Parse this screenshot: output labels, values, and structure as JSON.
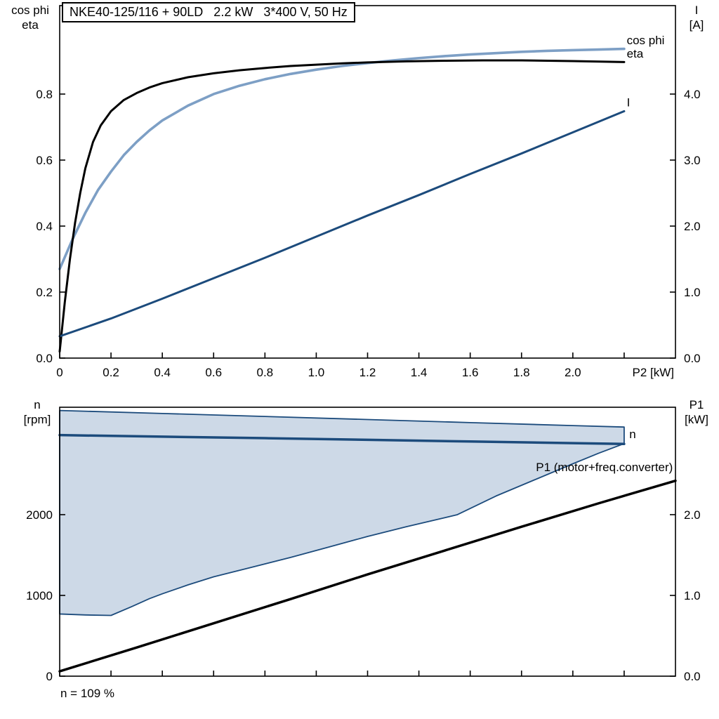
{
  "colors": {
    "light_blue": "#7d9fc5",
    "dark_blue": "#1c4b7c",
    "black": "#000000",
    "band_fill": "#cdd9e7"
  },
  "chart_data": [
    {
      "id": "motor-curves",
      "type": "line",
      "title": "NKE40-125/116 + 90LD   2.2 kW   3*400 V, 50 Hz",
      "x_axis": {
        "label": "P2 [kW]",
        "range": [
          0,
          2.4
        ],
        "ticks": [
          0,
          0.2,
          0.4,
          0.6,
          0.8,
          1.0,
          1.2,
          1.4,
          1.6,
          1.8,
          2.0,
          2.2
        ],
        "tick_labels": [
          "0",
          "0.2",
          "0.4",
          "0.6",
          "0.8",
          "1.0",
          "1.2",
          "1.4",
          "1.6",
          "1.8",
          "2.0",
          ""
        ]
      },
      "y_left": {
        "title": "cos phi\neta",
        "range": [
          0,
          1.068
        ],
        "ticks": [
          0,
          0.2,
          0.4,
          0.6,
          0.8
        ],
        "tick_labels": [
          "0.0",
          "0.2",
          "0.4",
          "0.6",
          "0.8"
        ]
      },
      "y_right": {
        "title": "I\n[A]",
        "range": [
          0,
          5.34
        ],
        "ticks": [
          0,
          1,
          2,
          3,
          4
        ],
        "tick_labels": [
          "0.0",
          "1.0",
          "2.0",
          "3.0",
          "4.0"
        ]
      },
      "series": [
        {
          "name": "cos phi",
          "axis": "left",
          "color": "light_blue",
          "width": 3.6,
          "points": [
            [
              0,
              0.27
            ],
            [
              0.05,
              0.36
            ],
            [
              0.1,
              0.44
            ],
            [
              0.15,
              0.51
            ],
            [
              0.2,
              0.565
            ],
            [
              0.25,
              0.615
            ],
            [
              0.3,
              0.655
            ],
            [
              0.35,
              0.69
            ],
            [
              0.4,
              0.72
            ],
            [
              0.5,
              0.765
            ],
            [
              0.6,
              0.8
            ],
            [
              0.7,
              0.825
            ],
            [
              0.8,
              0.845
            ],
            [
              0.9,
              0.861
            ],
            [
              1.0,
              0.874
            ],
            [
              1.1,
              0.885
            ],
            [
              1.2,
              0.894
            ],
            [
              1.3,
              0.902
            ],
            [
              1.4,
              0.909
            ],
            [
              1.5,
              0.915
            ],
            [
              1.6,
              0.92
            ],
            [
              1.7,
              0.924
            ],
            [
              1.8,
              0.928
            ],
            [
              1.9,
              0.931
            ],
            [
              2.0,
              0.933
            ],
            [
              2.1,
              0.935
            ],
            [
              2.2,
              0.937
            ]
          ]
        },
        {
          "name": "eta",
          "axis": "left",
          "color": "black",
          "width": 3,
          "points": [
            [
              0,
              0.02
            ],
            [
              0.02,
              0.17
            ],
            [
              0.04,
              0.3
            ],
            [
              0.06,
              0.41
            ],
            [
              0.08,
              0.5
            ],
            [
              0.1,
              0.575
            ],
            [
              0.13,
              0.655
            ],
            [
              0.16,
              0.705
            ],
            [
              0.2,
              0.748
            ],
            [
              0.25,
              0.782
            ],
            [
              0.3,
              0.803
            ],
            [
              0.35,
              0.82
            ],
            [
              0.4,
              0.833
            ],
            [
              0.5,
              0.851
            ],
            [
              0.6,
              0.863
            ],
            [
              0.7,
              0.872
            ],
            [
              0.8,
              0.879
            ],
            [
              0.9,
              0.885
            ],
            [
              1.0,
              0.889
            ],
            [
              1.1,
              0.893
            ],
            [
              1.2,
              0.896
            ],
            [
              1.35,
              0.899
            ],
            [
              1.5,
              0.901
            ],
            [
              1.65,
              0.902
            ],
            [
              1.8,
              0.902
            ],
            [
              2.0,
              0.9
            ],
            [
              2.2,
              0.897
            ]
          ]
        },
        {
          "name": "I",
          "axis": "right",
          "color": "dark_blue",
          "width": 3,
          "points": [
            [
              0,
              0.33
            ],
            [
              0.2,
              0.6
            ],
            [
              0.4,
              0.9
            ],
            [
              0.6,
              1.21
            ],
            [
              0.8,
              1.52
            ],
            [
              1.0,
              1.84
            ],
            [
              1.2,
              2.16
            ],
            [
              1.4,
              2.47
            ],
            [
              1.6,
              2.79
            ],
            [
              1.8,
              3.1
            ],
            [
              2.0,
              3.42
            ],
            [
              2.2,
              3.74
            ]
          ]
        }
      ],
      "labels": [
        {
          "text": "cos phi",
          "x": 2.21,
          "y": 0.964,
          "axis": "left",
          "color": "light_blue",
          "anchor": "start"
        },
        {
          "text": "eta",
          "x": 2.21,
          "y": 0.923,
          "axis": "left",
          "color": "black",
          "anchor": "start"
        },
        {
          "text": "I",
          "x": 2.21,
          "y": 3.88,
          "axis": "right",
          "color": "dark_blue",
          "anchor": "start"
        }
      ]
    },
    {
      "id": "speed-power",
      "type": "line",
      "footnote": "n = 109 %",
      "x_axis": {
        "label": "",
        "range": [
          0,
          2.4
        ],
        "ticks": [
          0,
          0.2,
          0.4,
          0.6,
          0.8,
          1.0,
          1.2,
          1.4,
          1.6,
          1.8,
          2.0,
          2.2
        ],
        "tick_labels": [
          "",
          "",
          "",
          "",
          "",
          "",
          "",
          "",
          "",
          "",
          "",
          ""
        ]
      },
      "y_left": {
        "title": "n\n[rpm]",
        "range": [
          0,
          3330
        ],
        "ticks": [
          0,
          1000,
          2000
        ],
        "tick_labels": [
          "0",
          "1000",
          "2000"
        ]
      },
      "y_right": {
        "title": "P1\n[kW]",
        "range": [
          0,
          3.33
        ],
        "ticks": [
          0,
          1,
          2
        ],
        "tick_labels": [
          "0.0",
          "1.0",
          "2.0"
        ]
      },
      "series": [
        {
          "name": "speed control range",
          "type": "band",
          "axis": "left",
          "color": "dark_blue",
          "width": 1.8,
          "fill": "band_fill",
          "upper": [
            [
              0,
              3290
            ],
            [
              0.4,
              3253
            ],
            [
              0.8,
              3216
            ],
            [
              1.2,
              3178
            ],
            [
              1.6,
              3140
            ],
            [
              2.0,
              3103
            ],
            [
              2.2,
              3085
            ]
          ],
          "lower": [
            [
              0,
              770
            ],
            [
              0.1,
              758
            ],
            [
              0.2,
              752
            ],
            [
              0.28,
              860
            ],
            [
              0.35,
              960
            ],
            [
              0.4,
              1020
            ],
            [
              0.5,
              1130
            ],
            [
              0.6,
              1230
            ],
            [
              0.75,
              1350
            ],
            [
              0.9,
              1470
            ],
            [
              1.05,
              1600
            ],
            [
              1.2,
              1730
            ],
            [
              1.35,
              1850
            ],
            [
              1.5,
              1962
            ],
            [
              1.55,
              2000
            ],
            [
              1.7,
              2230
            ],
            [
              1.85,
              2430
            ],
            [
              2.0,
              2630
            ],
            [
              2.1,
              2760
            ],
            [
              2.2,
              2880
            ]
          ]
        },
        {
          "name": "n",
          "axis": "left",
          "color": "dark_blue",
          "width": 3.5,
          "points": [
            [
              0,
              2985
            ],
            [
              0.4,
              2966
            ],
            [
              0.8,
              2947
            ],
            [
              1.2,
              2927
            ],
            [
              1.6,
              2906
            ],
            [
              2.0,
              2886
            ],
            [
              2.2,
              2876
            ]
          ]
        },
        {
          "name": "P1 (motor+freq.converter)",
          "axis": "right",
          "color": "black",
          "width": 3.5,
          "points": [
            [
              0,
              0.06
            ],
            [
              0.3,
              0.355
            ],
            [
              0.6,
              0.655
            ],
            [
              0.9,
              0.955
            ],
            [
              1.2,
              1.26
            ],
            [
              1.5,
              1.555
            ],
            [
              1.8,
              1.85
            ],
            [
              2.1,
              2.14
            ],
            [
              2.4,
              2.42
            ]
          ]
        }
      ],
      "labels": [
        {
          "text": "n",
          "x": 2.22,
          "y": 3000,
          "axis": "left",
          "color": "dark_blue",
          "anchor": "start"
        },
        {
          "text": "P1 (motor+freq.converter)",
          "x": 2.39,
          "y": 2590,
          "axis": "left",
          "color": "black",
          "anchor": "end"
        }
      ]
    }
  ]
}
